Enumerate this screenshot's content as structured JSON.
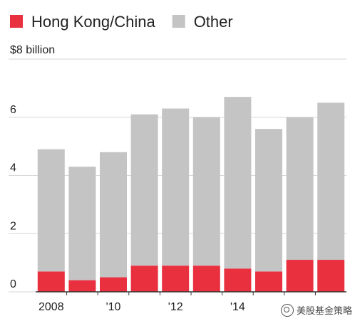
{
  "chart_data": {
    "type": "bar",
    "stacked": true,
    "categories": [
      "2008",
      "2009",
      "2010",
      "2011",
      "2012",
      "2013",
      "2014",
      "2015",
      "2016",
      "2017"
    ],
    "x_tick_labels": [
      "2008",
      "",
      "'10",
      "",
      "'12",
      "",
      "'14",
      "",
      "",
      ""
    ],
    "series": [
      {
        "name": "Hong Kong/China",
        "color": "#e8303f",
        "values": [
          0.7,
          0.4,
          0.5,
          0.9,
          0.9,
          0.9,
          0.8,
          0.7,
          1.1,
          1.1
        ]
      },
      {
        "name": "Other",
        "color": "#c4c4c4",
        "values": [
          4.2,
          3.9,
          4.3,
          5.2,
          5.4,
          5.1,
          5.9,
          4.9,
          4.9,
          5.4
        ]
      }
    ],
    "y_ticks": [
      0,
      2,
      4,
      6,
      8
    ],
    "y_tick_labels": [
      "0",
      "2",
      "4",
      "6",
      "$8 billion"
    ],
    "ylim": [
      0,
      8
    ],
    "grid": true,
    "legend": {
      "position": "top-left"
    }
  },
  "watermark": {
    "text": "美股基金策略"
  }
}
